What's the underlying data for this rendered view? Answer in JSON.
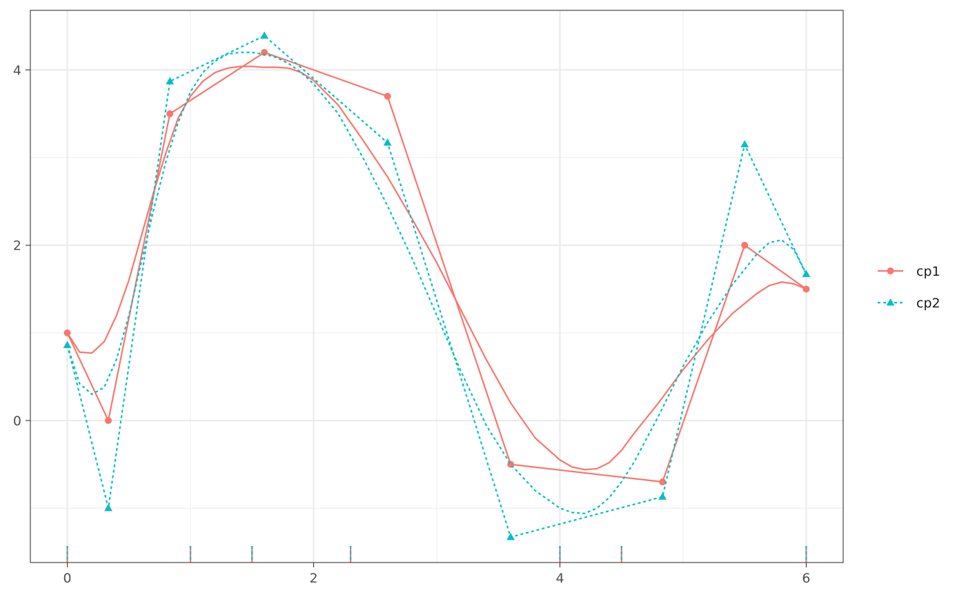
{
  "chart_data": {
    "type": "line",
    "title": "",
    "xlabel": "",
    "ylabel": "",
    "xlim": [
      -0.3,
      6.3
    ],
    "ylim": [
      -1.62,
      4.68
    ],
    "x_ticks": [
      0,
      2,
      4,
      6
    ],
    "x_tick_labels": [
      "0",
      "2",
      "4",
      "6"
    ],
    "x_minor_ticks": [
      1,
      3,
      5
    ],
    "y_ticks": [
      0,
      2,
      4
    ],
    "y_tick_labels": [
      "0",
      "2",
      "4"
    ],
    "y_minor_ticks": [
      -1,
      1,
      3
    ],
    "grid": true,
    "legend_position": "right",
    "knots": [
      0,
      1,
      1.5,
      2.3,
      4,
      4.5,
      6
    ],
    "series": [
      {
        "name": "cp1",
        "color": "#F8766D",
        "line_style": "solid",
        "marker": "circle",
        "control_points": {
          "x": [
            0,
            0.333,
            0.833,
            1.6,
            2.6,
            3.6,
            4.833,
            5.5,
            6
          ],
          "y": [
            1.0,
            0.0,
            3.5,
            4.2,
            3.7,
            -0.5,
            -0.7,
            2.0,
            1.5
          ]
        },
        "smooth_curve": {
          "x": [
            0,
            0.1,
            0.2,
            0.3,
            0.4,
            0.5,
            0.6,
            0.7,
            0.8,
            0.9,
            1.0,
            1.1,
            1.2,
            1.3,
            1.4,
            1.5,
            1.6,
            1.7,
            1.8,
            1.9,
            2.0,
            2.2,
            2.4,
            2.6,
            2.8,
            3.0,
            3.2,
            3.4,
            3.6,
            3.8,
            4.0,
            4.1,
            4.2,
            4.3,
            4.4,
            4.5,
            4.6,
            4.8,
            5.0,
            5.2,
            5.4,
            5.6,
            5.7,
            5.8,
            5.9,
            6.0
          ],
          "y": [
            1.0,
            0.78,
            0.77,
            0.9,
            1.2,
            1.6,
            2.1,
            2.6,
            3.05,
            3.45,
            3.7,
            3.87,
            3.97,
            4.02,
            4.04,
            4.04,
            4.03,
            4.03,
            4.02,
            3.97,
            3.88,
            3.6,
            3.2,
            2.78,
            2.3,
            1.8,
            1.25,
            0.7,
            0.2,
            -0.2,
            -0.45,
            -0.53,
            -0.56,
            -0.55,
            -0.48,
            -0.34,
            -0.15,
            0.2,
            0.58,
            0.92,
            1.22,
            1.45,
            1.54,
            1.58,
            1.56,
            1.5
          ]
        }
      },
      {
        "name": "cp2",
        "color": "#00BFC4",
        "line_style": "dotted",
        "marker": "triangle",
        "control_points": {
          "x": [
            0,
            0.333,
            0.833,
            1.6,
            2.6,
            3.6,
            4.833,
            5.5,
            6
          ],
          "y": [
            0.86,
            -1.0,
            3.87,
            4.39,
            3.17,
            -1.33,
            -0.87,
            3.15,
            1.67
          ]
        },
        "smooth_curve": {
          "x": [
            0,
            0.1,
            0.2,
            0.3,
            0.4,
            0.5,
            0.6,
            0.7,
            0.8,
            0.9,
            1.0,
            1.1,
            1.2,
            1.3,
            1.4,
            1.5,
            1.6,
            1.7,
            1.8,
            1.9,
            2.0,
            2.2,
            2.4,
            2.6,
            2.8,
            3.0,
            3.2,
            3.4,
            3.6,
            3.8,
            4.0,
            4.1,
            4.2,
            4.3,
            4.4,
            4.5,
            4.6,
            4.8,
            5.0,
            5.2,
            5.4,
            5.6,
            5.7,
            5.8,
            5.9,
            6.0
          ],
          "y": [
            0.86,
            0.42,
            0.3,
            0.38,
            0.7,
            1.2,
            1.8,
            2.4,
            2.95,
            3.4,
            3.75,
            3.97,
            4.1,
            4.18,
            4.2,
            4.2,
            4.18,
            4.14,
            4.07,
            3.97,
            3.84,
            3.5,
            3.0,
            2.45,
            1.85,
            1.2,
            0.55,
            -0.05,
            -0.5,
            -0.8,
            -1.0,
            -1.05,
            -1.06,
            -1.0,
            -0.88,
            -0.7,
            -0.48,
            0.05,
            0.62,
            1.12,
            1.55,
            1.9,
            2.03,
            2.06,
            1.95,
            1.67
          ]
        }
      }
    ]
  }
}
